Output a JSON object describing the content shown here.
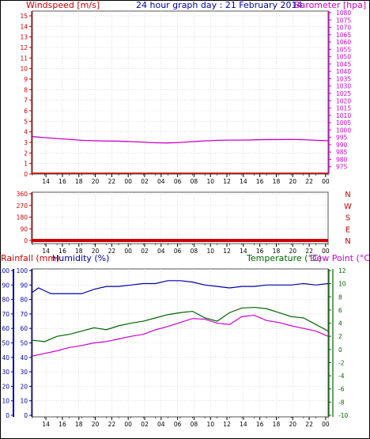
{
  "header": {
    "windspeed_label": "Windspeed [m/s]",
    "title": "24 hour graph day : 21 February 2014",
    "barometer_label": "Barometer [hpa]"
  },
  "mid_header": {
    "rainfall_label": "Rainfall (mm)",
    "humidity_label": "Humidity (%)",
    "temperature_label": "Temperature (°C)",
    "dewpoint_label": "Dew Point (°C)"
  },
  "colors": {
    "wind": "#cc0000",
    "barometer": "#cc00cc",
    "rain": "#cc0000",
    "humidity": "#0000aa",
    "temperature": "#006600",
    "dewpoint": "#cc00cc",
    "grid": "#c8c8c8",
    "title": "#0000aa"
  },
  "chart_data": [
    {
      "type": "line",
      "title": "24 hour graph day : 21 February 2014",
      "x_ticks": [
        "14",
        "16",
        "18",
        "20",
        "22",
        "00",
        "02",
        "04",
        "06",
        "08",
        "10",
        "12",
        "14",
        "16",
        "18",
        "20",
        "22",
        "00"
      ],
      "left_axis": {
        "label": "Windspeed [m/s]",
        "ylim": [
          0,
          15
        ],
        "ticks": [
          0,
          1,
          2,
          3,
          4,
          5,
          6,
          7,
          8,
          9,
          10,
          11,
          12,
          13,
          14,
          15
        ]
      },
      "right_axis": {
        "label": "Barometer [hpa]",
        "ylim": [
          970,
          1080
        ],
        "ticks": [
          975,
          980,
          985,
          990,
          995,
          1000,
          1005,
          1010,
          1015,
          1020,
          1025,
          1030,
          1035,
          1040,
          1045,
          1050,
          1055,
          1060,
          1065,
          1070,
          1075,
          1080
        ]
      },
      "series": [
        {
          "name": "Windspeed",
          "axis": "left",
          "x": [
            0,
            24
          ],
          "values": [
            0,
            0
          ]
        },
        {
          "name": "Barometer",
          "axis": "right",
          "x": [
            0,
            1,
            2,
            3,
            4,
            5,
            6,
            7,
            8,
            9,
            10,
            11,
            12,
            13,
            14,
            15,
            16,
            17,
            18,
            19,
            20,
            21,
            22,
            23,
            24
          ],
          "values": [
            995.5,
            994.8,
            994.2,
            993.6,
            993.0,
            992.7,
            992.5,
            992.4,
            992.1,
            991.7,
            991.3,
            991.2,
            991.5,
            992.1,
            992.6,
            993.0,
            993.1,
            993.1,
            993.3,
            993.5,
            993.5,
            993.6,
            993.4,
            993.0,
            992.7
          ]
        }
      ]
    },
    {
      "type": "line",
      "x_ticks": [
        "14",
        "16",
        "18",
        "20",
        "22",
        "00",
        "02",
        "04",
        "06",
        "08",
        "10",
        "12",
        "14",
        "16",
        "18",
        "20",
        "22",
        "00"
      ],
      "left_axis": {
        "ylim": [
          0,
          360
        ],
        "ticks": [
          0,
          90,
          180,
          270,
          360
        ]
      },
      "right_axis": {
        "ticks": [
          "N",
          "E",
          "S",
          "W",
          "N"
        ]
      },
      "series": [
        {
          "name": "Wind direction",
          "axis": "left",
          "x": [
            0,
            24
          ],
          "values": [
            0,
            0
          ]
        }
      ]
    },
    {
      "type": "line",
      "x_ticks": [
        "14",
        "16",
        "18",
        "20",
        "22",
        "00",
        "02",
        "04",
        "06",
        "08",
        "10",
        "12",
        "14",
        "16",
        "18",
        "20",
        "22",
        "00"
      ],
      "left_axis": {
        "label": "Rainfall (mm) / Humidity (%)",
        "ylim": [
          0,
          100
        ],
        "ticks": [
          0,
          10,
          20,
          30,
          40,
          50,
          60,
          70,
          80,
          90,
          100
        ]
      },
      "right_axis": {
        "label": "Temperature (°C) / Dew Point (°C)",
        "ylim": [
          -10,
          12
        ],
        "ticks": [
          -10,
          -8,
          -6,
          -4,
          -2,
          0,
          2,
          4,
          6,
          8,
          10,
          12
        ]
      },
      "series": [
        {
          "name": "Humidity",
          "axis": "left",
          "x": [
            0,
            0.5,
            1,
            1.5,
            2,
            3,
            4,
            5,
            6,
            7,
            8,
            9,
            10,
            11,
            12,
            13,
            14,
            15,
            16,
            17,
            18,
            19,
            20,
            21,
            22,
            23,
            24
          ],
          "values": [
            85,
            88,
            86,
            84,
            84,
            84,
            84,
            87,
            89,
            89,
            90,
            91,
            91,
            93,
            93,
            92,
            90,
            89,
            88,
            89,
            89,
            90,
            90,
            90,
            91,
            90,
            91
          ]
        },
        {
          "name": "Temperature",
          "axis": "right",
          "x": [
            0,
            1,
            2,
            3,
            4,
            5,
            6,
            7,
            8,
            9,
            10,
            11,
            12,
            13,
            14,
            15,
            16,
            17,
            18,
            19,
            20,
            21,
            22,
            23,
            24
          ],
          "values": [
            1.4,
            1.2,
            2.0,
            2.3,
            2.8,
            3.3,
            3.0,
            3.6,
            4.0,
            4.3,
            4.8,
            5.3,
            5.6,
            5.8,
            4.8,
            4.3,
            5.6,
            6.3,
            6.4,
            6.2,
            5.6,
            5.0,
            4.8,
            3.8,
            2.8
          ]
        },
        {
          "name": "Dew Point",
          "axis": "right",
          "x": [
            0,
            1,
            2,
            3,
            4,
            5,
            6,
            7,
            8,
            9,
            10,
            11,
            12,
            13,
            14,
            15,
            16,
            17,
            18,
            19,
            20,
            21,
            22,
            23,
            24
          ],
          "values": [
            -1.0,
            -0.6,
            -0.2,
            0.3,
            0.6,
            1.0,
            1.2,
            1.6,
            2.0,
            2.3,
            3.0,
            3.5,
            4.1,
            4.7,
            4.6,
            4.0,
            3.8,
            5.0,
            5.2,
            4.4,
            4.1,
            3.6,
            3.2,
            2.8,
            2.0
          ]
        }
      ]
    }
  ]
}
